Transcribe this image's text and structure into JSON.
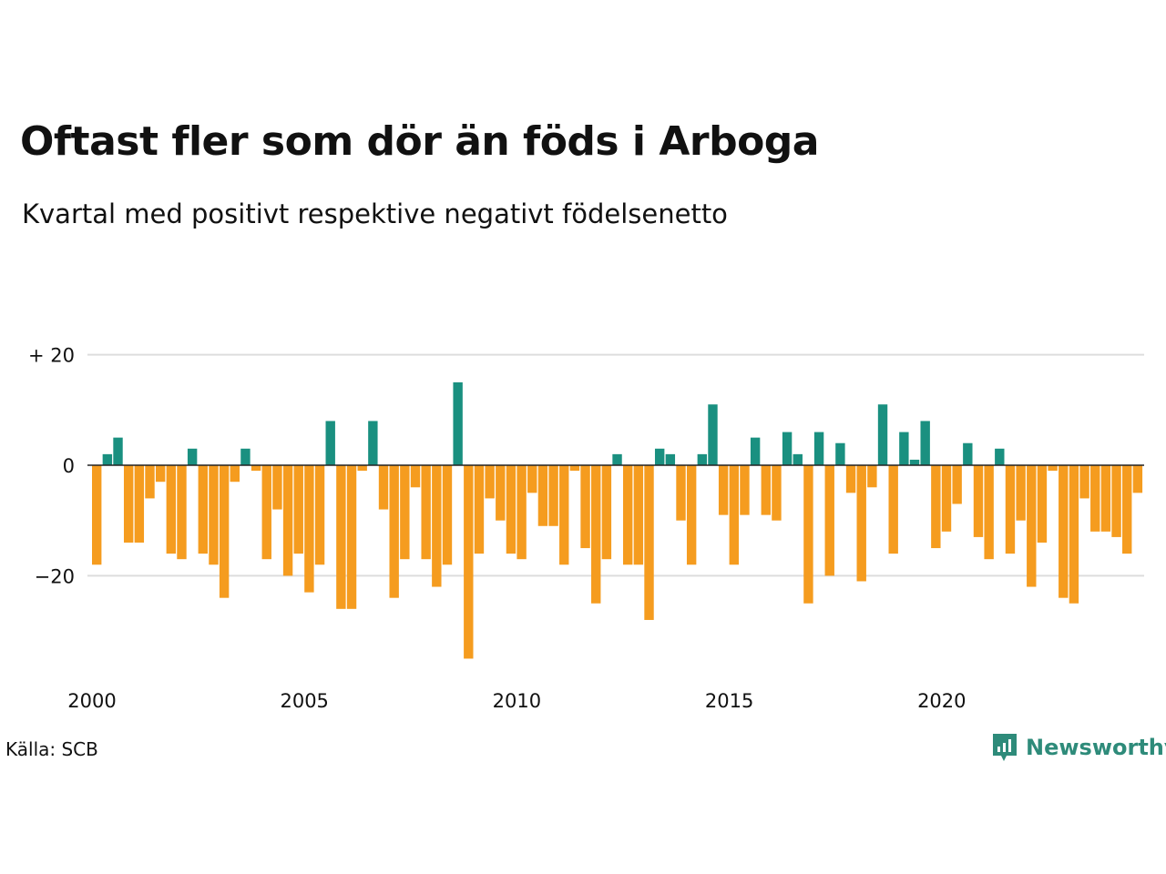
{
  "title": "Oftast fler som dör än föds i Arboga",
  "subtitle": "Kvartal med positivt respektive negativt födelsenetto",
  "source": "Källa: SCB",
  "brand": "Newsworthy",
  "colors": {
    "positive": "#1a9080",
    "negative": "#f59c1f",
    "grid": "#dddddd",
    "zero": "#222222",
    "brand": "#2e8b7a"
  },
  "chart_data": {
    "type": "bar",
    "y_ticks": [
      {
        "value": 20,
        "label": "+ 20"
      },
      {
        "value": 0,
        "label": "0"
      },
      {
        "value": -20,
        "label": "−20"
      }
    ],
    "x_ticks": [
      {
        "year": 2000,
        "label": "2000"
      },
      {
        "year": 2005,
        "label": "2005"
      },
      {
        "year": 2010,
        "label": "2010"
      },
      {
        "year": 2015,
        "label": "2015"
      },
      {
        "year": 2020,
        "label": "2020"
      }
    ],
    "ylim": [
      -36,
      20
    ],
    "start_year": 2000,
    "values": [
      -18,
      2,
      5,
      -14,
      -14,
      -6,
      -3,
      -16,
      -17,
      3,
      -16,
      -18,
      -24,
      -3,
      3,
      -1,
      -17,
      -8,
      -20,
      -16,
      -23,
      -18,
      8,
      -26,
      -26,
      -1,
      8,
      -8,
      -24,
      -17,
      -4,
      -17,
      -22,
      -18,
      15,
      -35,
      -16,
      -6,
      -10,
      -16,
      -17,
      -5,
      -11,
      -11,
      -18,
      -1,
      -15,
      -25,
      -17,
      2,
      -18,
      -18,
      -28,
      3,
      2,
      -10,
      -18,
      2,
      11,
      -9,
      -18,
      -9,
      5,
      -9,
      -10,
      6,
      2,
      -25,
      6,
      -20,
      4,
      -5,
      -21,
      -4,
      11,
      -16,
      6,
      1,
      8,
      -15,
      -12,
      -7,
      4,
      -13,
      -17,
      3,
      -16,
      -10,
      -22,
      -14,
      -1,
      -24,
      -25,
      -6,
      -12,
      -12,
      -13,
      -16,
      -5
    ]
  }
}
